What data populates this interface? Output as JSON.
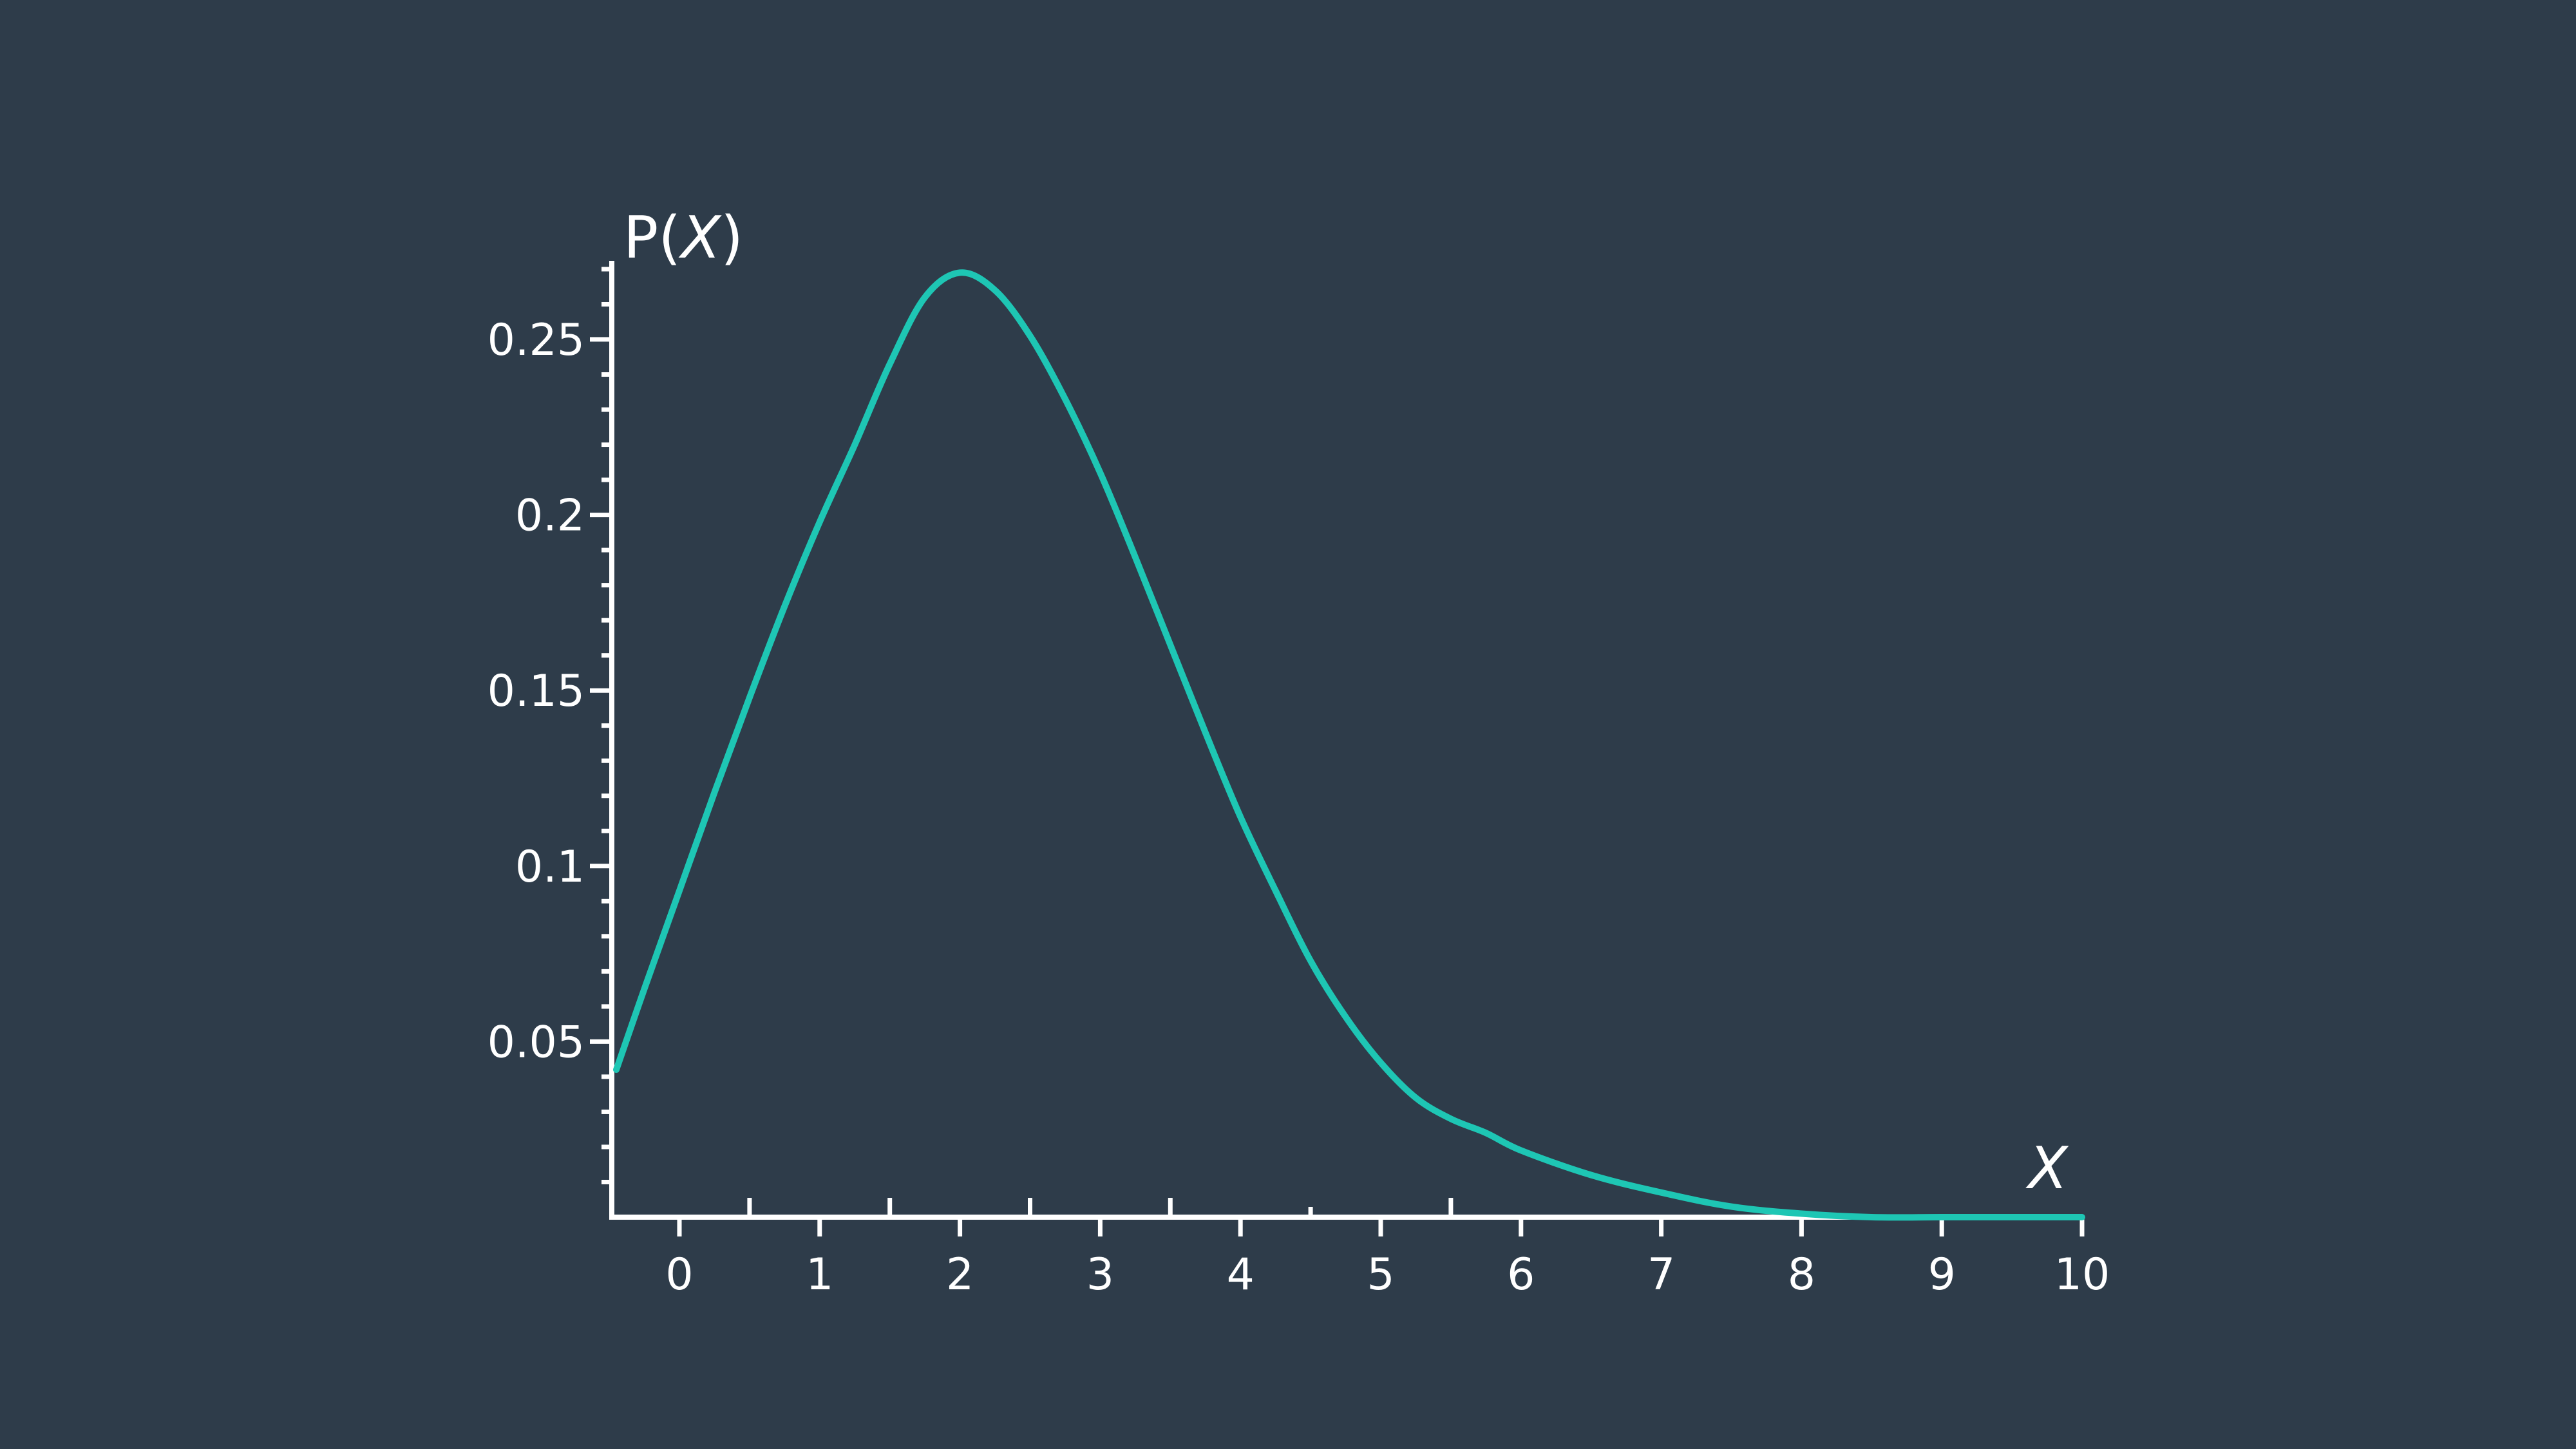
{
  "chart_data": {
    "type": "line",
    "title": "",
    "xlabel": "X",
    "ylabel_prefix": "P(",
    "ylabel_var": "X",
    "ylabel_suffix": ")",
    "xlim": [
      -0.5,
      10
    ],
    "ylim": [
      0,
      0.27
    ],
    "x_ticks": [
      0,
      1,
      2,
      3,
      4,
      5,
      6,
      7,
      8,
      9,
      10
    ],
    "x_tick_labels": [
      "0",
      "1",
      "2",
      "3",
      "4",
      "5",
      "6",
      "7",
      "8",
      "9",
      "10"
    ],
    "y_ticks": [
      0.05,
      0.1,
      0.15,
      0.2,
      0.25
    ],
    "y_tick_labels": [
      "0.05",
      "0.1",
      "0.15",
      "0.2",
      "0.25"
    ],
    "grid": false,
    "colors": {
      "background": "#2e3c4a",
      "axis": "#ffffff",
      "series": "#1ec6b4"
    },
    "series": [
      {
        "x": [
          -0.45,
          -0.25,
          0,
          0.25,
          0.5,
          0.75,
          1,
          1.25,
          1.5,
          1.75,
          2,
          2.25,
          2.5,
          2.75,
          3,
          3.25,
          3.5,
          3.75,
          4,
          4.25,
          4.5,
          4.75,
          5,
          5.25,
          5.5,
          5.75,
          6,
          6.5,
          7,
          7.5,
          8,
          8.5,
          9,
          9.5,
          10
        ],
        "y": [
          0.042,
          0.065,
          0.093,
          0.121,
          0.148,
          0.174,
          0.198,
          0.22,
          0.243,
          0.262,
          0.269,
          0.264,
          0.251,
          0.233,
          0.212,
          0.188,
          0.163,
          0.138,
          0.114,
          0.093,
          0.073,
          0.057,
          0.044,
          0.034,
          0.028,
          0.024,
          0.019,
          0.012,
          0.007,
          0.003,
          0.001,
          0.0,
          0.0,
          0.0,
          0.0
        ]
      }
    ]
  }
}
